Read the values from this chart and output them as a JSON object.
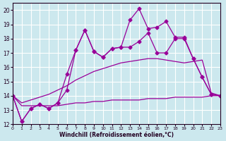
{
  "xlabel": "Windchill (Refroidissement éolien,°C)",
  "bg_color": "#cce8ee",
  "grid_color": "#ffffff",
  "line_color": "#990099",
  "xlim": [
    0,
    23
  ],
  "ylim": [
    12,
    20.5
  ],
  "xticks": [
    0,
    1,
    2,
    3,
    4,
    5,
    6,
    7,
    8,
    9,
    10,
    11,
    12,
    13,
    14,
    15,
    16,
    17,
    18,
    19,
    20,
    21,
    22,
    23
  ],
  "yticks": [
    12,
    13,
    14,
    15,
    16,
    17,
    18,
    19,
    20
  ],
  "lines": [
    {
      "x": [
        0,
        1,
        2,
        3,
        4,
        5,
        6,
        7,
        8,
        9,
        10,
        11,
        12,
        13,
        14,
        15,
        16,
        17,
        18,
        19,
        20,
        21,
        22,
        23
      ],
      "y": [
        14.0,
        12.2,
        13.1,
        13.4,
        13.1,
        13.5,
        15.5,
        17.2,
        18.6,
        17.1,
        16.7,
        17.3,
        17.4,
        19.3,
        20.1,
        18.7,
        18.8,
        19.2,
        18.1,
        18.1,
        16.6,
        15.3,
        14.1,
        14.0
      ],
      "marker": "D",
      "markersize": 2.5,
      "lw": 0.9
    },
    {
      "x": [
        0,
        1,
        2,
        3,
        4,
        5,
        6,
        7,
        8,
        9,
        10,
        11,
        12,
        13,
        14,
        15,
        16,
        17,
        18,
        19,
        20,
        21,
        22,
        23
      ],
      "y": [
        14.0,
        12.2,
        13.1,
        13.4,
        13.1,
        13.5,
        14.4,
        17.2,
        18.6,
        17.1,
        16.7,
        17.3,
        17.4,
        17.4,
        17.8,
        18.4,
        17.0,
        17.0,
        18.0,
        18.0,
        16.6,
        15.3,
        14.1,
        14.0
      ],
      "marker": "D",
      "markersize": 2.5,
      "lw": 0.9
    },
    {
      "x": [
        0,
        1,
        2,
        3,
        4,
        5,
        6,
        7,
        8,
        9,
        10,
        11,
        12,
        13,
        14,
        15,
        16,
        17,
        18,
        19,
        20,
        21,
        22,
        23
      ],
      "y": [
        14.0,
        13.5,
        13.7,
        13.9,
        14.1,
        14.4,
        14.7,
        15.1,
        15.4,
        15.7,
        15.9,
        16.1,
        16.3,
        16.4,
        16.5,
        16.6,
        16.6,
        16.5,
        16.4,
        16.3,
        16.4,
        16.5,
        14.2,
        14.0
      ],
      "marker": null,
      "markersize": 0,
      "lw": 0.9
    },
    {
      "x": [
        0,
        1,
        2,
        3,
        4,
        5,
        6,
        7,
        8,
        9,
        10,
        11,
        12,
        13,
        14,
        15,
        16,
        17,
        18,
        19,
        20,
        21,
        22,
        23
      ],
      "y": [
        14.0,
        13.3,
        13.3,
        13.3,
        13.3,
        13.3,
        13.4,
        13.5,
        13.5,
        13.6,
        13.6,
        13.7,
        13.7,
        13.7,
        13.7,
        13.8,
        13.8,
        13.8,
        13.9,
        13.9,
        13.9,
        13.9,
        14.0,
        14.0
      ],
      "marker": null,
      "markersize": 0,
      "lw": 0.9
    }
  ]
}
